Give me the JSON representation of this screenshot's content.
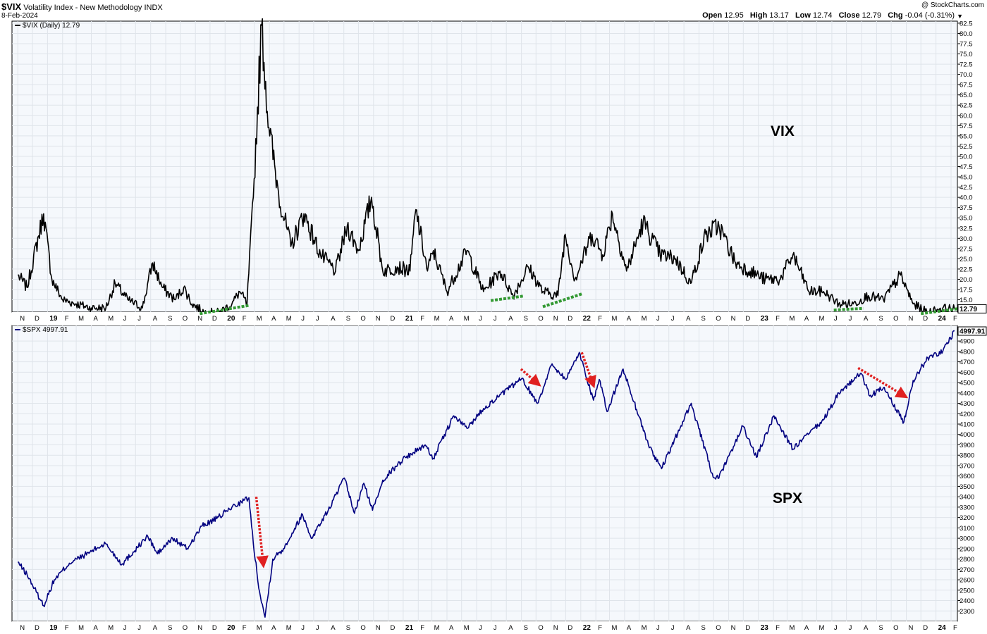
{
  "header": {
    "symbol": "$VIX",
    "name": "Volatility Index - New Methodology",
    "exchange": "INDX",
    "date": "8-Feb-2024",
    "copyright": "@ StockCharts.com",
    "stats": [
      {
        "label": "Open",
        "value": "12.95"
      },
      {
        "label": "High",
        "value": "13.17"
      },
      {
        "label": "Low",
        "value": "12.74"
      },
      {
        "label": "Close",
        "value": "12.79"
      },
      {
        "label": "Chg",
        "value": "-0.04 (-0.31%)"
      }
    ]
  },
  "chart_data": [
    {
      "type": "line",
      "panel": "top",
      "legend": "$VIX (Daily) 12.79",
      "annotation": "VIX",
      "last_value_label": "12.79",
      "color": "#000000",
      "ylim": [
        12,
        83
      ],
      "yticks": [
        "15.0",
        "17.5",
        "20.0",
        "22.5",
        "25.0",
        "27.5",
        "30.0",
        "32.5",
        "35.0",
        "37.5",
        "40.0",
        "42.5",
        "45.0",
        "47.5",
        "50.0",
        "52.5",
        "55.0",
        "57.5",
        "60.0",
        "62.5",
        "65.0",
        "67.5",
        "70.0",
        "72.5",
        "75.0",
        "77.5",
        "80.0",
        "82.5"
      ],
      "x": [
        "2018-11-01",
        "2018-11-20",
        "2018-12-24",
        "2019-01-10",
        "2019-02-01",
        "2019-03-01",
        "2019-04-01",
        "2019-05-01",
        "2019-05-20",
        "2019-06-15",
        "2019-07-15",
        "2019-08-05",
        "2019-08-25",
        "2019-09-20",
        "2019-10-08",
        "2019-10-25",
        "2019-11-20",
        "2019-12-20",
        "2020-01-15",
        "2020-01-31",
        "2020-02-15",
        "2020-02-28",
        "2020-03-16",
        "2020-03-31",
        "2020-04-20",
        "2020-05-15",
        "2020-06-11",
        "2020-07-15",
        "2020-08-15",
        "2020-09-08",
        "2020-10-01",
        "2020-10-28",
        "2020-11-20",
        "2020-12-20",
        "2021-01-15",
        "2021-01-27",
        "2021-02-20",
        "2021-03-04",
        "2021-04-01",
        "2021-05-12",
        "2021-06-15",
        "2021-07-19",
        "2021-08-15",
        "2021-09-15",
        "2021-10-15",
        "2021-11-15",
        "2021-11-30",
        "2021-12-20",
        "2022-01-24",
        "2022-02-15",
        "2022-03-07",
        "2022-04-05",
        "2022-05-09",
        "2022-06-13",
        "2022-07-15",
        "2022-08-15",
        "2022-09-15",
        "2022-10-12",
        "2022-11-15",
        "2022-12-15",
        "2023-01-15",
        "2023-02-15",
        "2023-03-13",
        "2023-04-15",
        "2023-05-15",
        "2023-06-15",
        "2023-07-15",
        "2023-08-15",
        "2023-09-15",
        "2023-10-20",
        "2023-11-15",
        "2023-12-15",
        "2024-01-15",
        "2024-02-08"
      ],
      "y": [
        21,
        18,
        36,
        20,
        15,
        14,
        13,
        13,
        19,
        15,
        13,
        24,
        18,
        15,
        18,
        14,
        12,
        12,
        14,
        17,
        14,
        40,
        82,
        57,
        41,
        28,
        36,
        26,
        22,
        33,
        27,
        40,
        22,
        23,
        22,
        37,
        22,
        27,
        17,
        27,
        17,
        22,
        16,
        23,
        17,
        16,
        31,
        20,
        31,
        26,
        36,
        22,
        34,
        26,
        25,
        19,
        31,
        33,
        24,
        22,
        20,
        20,
        26,
        17,
        17,
        14,
        14,
        16,
        15,
        21,
        14,
        12,
        13,
        12.79
      ]
    },
    {
      "type": "line",
      "panel": "bottom",
      "legend": "$SPX 4997.91",
      "annotation": "SPX",
      "last_value_label": "4997.91",
      "color": "#000080",
      "ylim": [
        2200,
        5050
      ],
      "yticks": [
        "2300",
        "2400",
        "2500",
        "2600",
        "2700",
        "2800",
        "2900",
        "3000",
        "3100",
        "3200",
        "3300",
        "3400",
        "3500",
        "3600",
        "3700",
        "3800",
        "3900",
        "4000",
        "4100",
        "4200",
        "4300",
        "4400",
        "4500",
        "4600",
        "4700",
        "4800",
        "4900"
      ],
      "x": [
        "2018-11-01",
        "2018-11-20",
        "2018-12-24",
        "2019-01-15",
        "2019-02-15",
        "2019-03-15",
        "2019-04-30",
        "2019-06-03",
        "2019-07-26",
        "2019-08-15",
        "2019-09-15",
        "2019-10-15",
        "2019-11-15",
        "2019-12-15",
        "2020-01-15",
        "2020-02-19",
        "2020-02-28",
        "2020-03-12",
        "2020-03-23",
        "2020-04-08",
        "2020-04-30",
        "2020-06-08",
        "2020-06-26",
        "2020-07-31",
        "2020-09-02",
        "2020-09-23",
        "2020-10-12",
        "2020-10-30",
        "2020-11-20",
        "2020-12-31",
        "2021-02-15",
        "2021-03-04",
        "2021-04-15",
        "2021-05-12",
        "2021-06-15",
        "2021-07-15",
        "2021-09-02",
        "2021-10-04",
        "2021-11-03",
        "2021-12-01",
        "2021-12-29",
        "2022-01-27",
        "2022-02-08",
        "2022-02-24",
        "2022-03-29",
        "2022-05-20",
        "2022-06-16",
        "2022-08-16",
        "2022-09-30",
        "2022-10-12",
        "2022-11-30",
        "2022-12-28",
        "2023-02-02",
        "2023-03-13",
        "2023-05-15",
        "2023-06-15",
        "2023-07-31",
        "2023-08-18",
        "2023-09-15",
        "2023-10-27",
        "2023-11-15",
        "2023-12-15",
        "2024-01-15",
        "2024-02-08"
      ],
      "y": [
        2770,
        2650,
        2350,
        2600,
        2760,
        2830,
        2950,
        2750,
        3020,
        2850,
        3000,
        2900,
        3120,
        3190,
        3300,
        3390,
        2950,
        2480,
        2240,
        2800,
        2900,
        3230,
        3000,
        3270,
        3580,
        3240,
        3530,
        3270,
        3560,
        3760,
        3900,
        3770,
        4180,
        4060,
        4250,
        4360,
        4540,
        4300,
        4680,
        4530,
        4790,
        4330,
        4530,
        4220,
        4630,
        3900,
        3670,
        4300,
        3590,
        3580,
        4080,
        3780,
        4180,
        3860,
        4140,
        4400,
        4590,
        4370,
        4450,
        4120,
        4520,
        4740,
        4800,
        4997.91
      ]
    }
  ],
  "x_axis_labels": [
    "N",
    "D",
    "19",
    "F",
    "M",
    "A",
    "M",
    "J",
    "J",
    "A",
    "S",
    "O",
    "N",
    "D",
    "20",
    "F",
    "M",
    "A",
    "M",
    "J",
    "J",
    "A",
    "S",
    "O",
    "N",
    "D",
    "21",
    "F",
    "M",
    "A",
    "M",
    "J",
    "J",
    "A",
    "S",
    "O",
    "N",
    "D",
    "22",
    "F",
    "M",
    "A",
    "M",
    "J",
    "J",
    "A",
    "S",
    "O",
    "N",
    "D",
    "23",
    "F",
    "M",
    "A",
    "M",
    "J",
    "J",
    "A",
    "S",
    "O",
    "N",
    "D",
    "24",
    "F"
  ],
  "x_axis_bold": [
    "19",
    "20",
    "21",
    "22",
    "23",
    "24"
  ],
  "annotation_colors": {
    "support_lines": "#339933",
    "arrows": "#e02020"
  }
}
